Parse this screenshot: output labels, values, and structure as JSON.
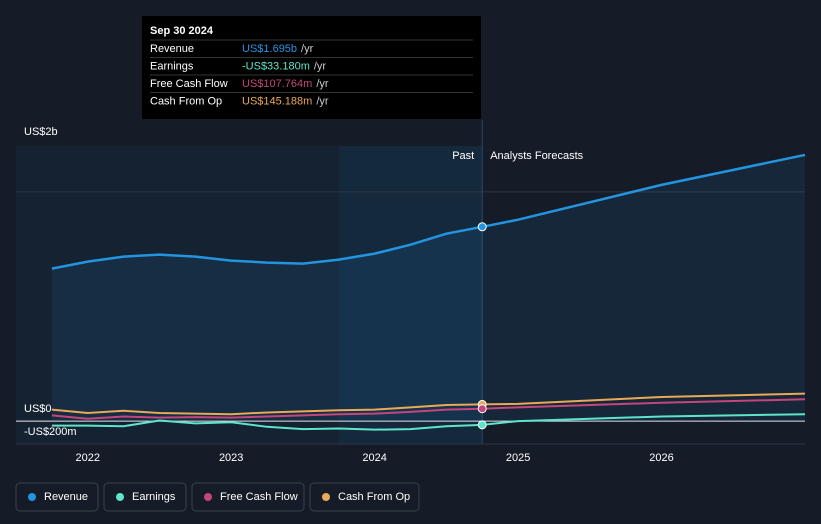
{
  "chart_data": {
    "type": "line",
    "past_label": "Past",
    "forecast_label": "Analysts Forecasts",
    "forecast_start": 2024.75,
    "x": [
      2021.75,
      2022,
      2022.25,
      2022.5,
      2022.75,
      2023,
      2023.25,
      2023.5,
      2023.75,
      2024,
      2024.25,
      2024.5,
      2024.75,
      2025,
      2026,
      2027
    ],
    "series": [
      {
        "name": "Revenue",
        "color": "#2394df",
        "area": true,
        "tooltip_label": "US$1.695b",
        "values": [
          1330,
          1391,
          1435,
          1452,
          1435,
          1400,
          1383,
          1374,
          1409,
          1461,
          1539,
          1635,
          1695,
          1757,
          2061,
          2322
        ]
      },
      {
        "name": "Earnings",
        "color": "#5ee5c9",
        "tooltip_label": "-US$33.180m",
        "values": [
          -40,
          -40,
          -45,
          5,
          -20,
          -10,
          -50,
          -70,
          -65,
          -75,
          -70,
          -45,
          -33.18,
          0,
          40,
          60
        ]
      },
      {
        "name": "Free Cash Flow",
        "color": "#c4467a",
        "tooltip_label": "US$107.764m",
        "values": [
          50,
          20,
          40,
          30,
          35,
          30,
          40,
          50,
          60,
          65,
          80,
          100,
          107.764,
          120,
          160,
          190
        ]
      },
      {
        "name": "Cash From Op",
        "color": "#e9a956",
        "tooltip_label": "US$145.188m",
        "values": [
          100,
          70,
          90,
          70,
          65,
          60,
          75,
          85,
          95,
          100,
          120,
          140,
          145.188,
          150,
          210,
          240
        ]
      }
    ],
    "tooltip": {
      "date": "Sep 30 2024",
      "suffix": "/yr"
    },
    "xlim": [
      2021.5,
      2027
    ],
    "xticks": [
      2022,
      2023,
      2024,
      2025,
      2026
    ],
    "ylim": [
      -200,
      2400
    ],
    "yticks": [
      {
        "value": -200,
        "label": "-US$200m"
      },
      {
        "value": 0,
        "label": "US$0"
      },
      {
        "value": 2000,
        "label": "US$2b"
      }
    ],
    "legend": "bottom-left"
  }
}
